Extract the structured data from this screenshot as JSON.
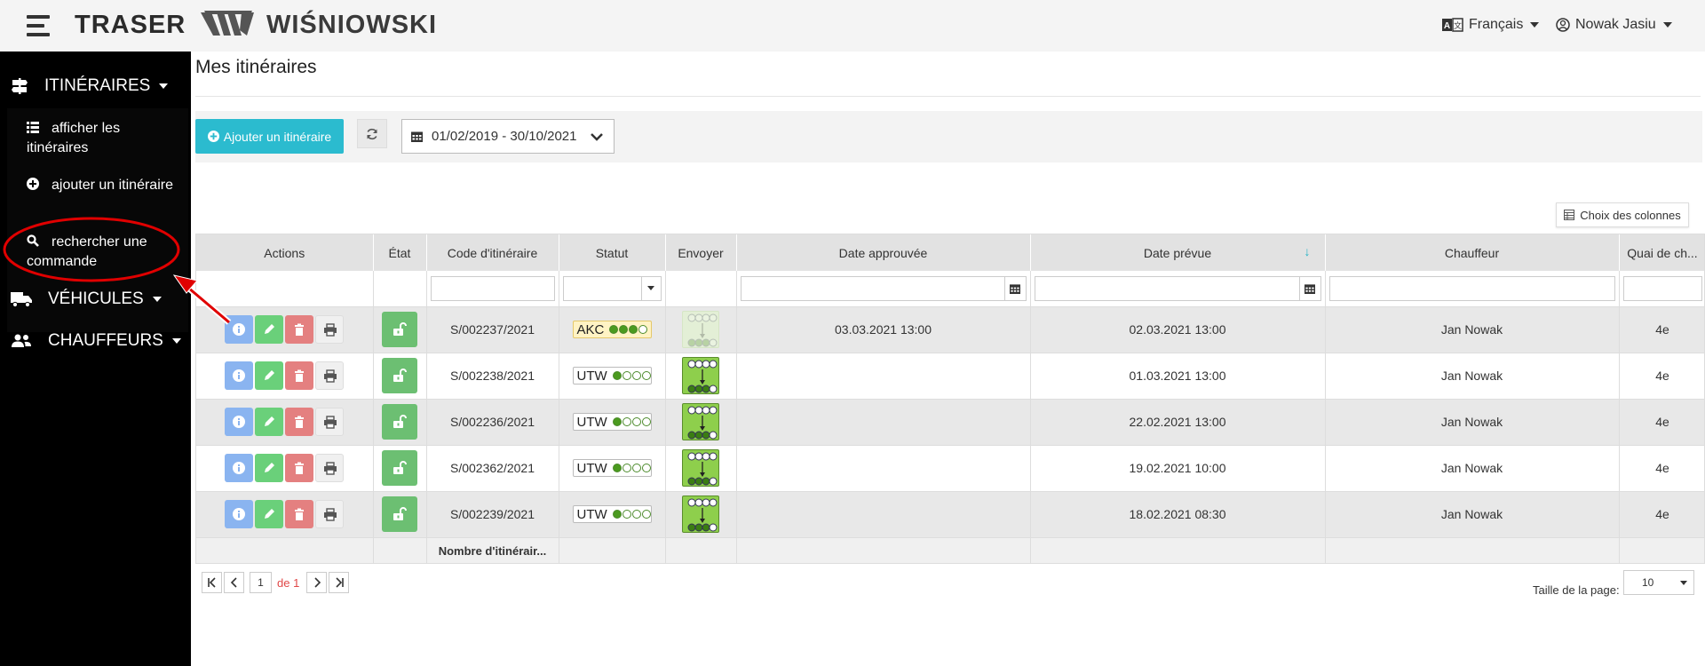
{
  "header": {
    "brand": "TRASER",
    "company": "WIŚNIOWSKI",
    "language": "Français",
    "user": "Nowak Jasiu"
  },
  "sidebar": {
    "sections": [
      {
        "label": "ITINÉRAIRES",
        "icon": "signpost-icon"
      },
      {
        "label": "VÉHICULES",
        "icon": "truck-icon"
      },
      {
        "label": "CHAUFFEURS",
        "icon": "users-icon"
      }
    ],
    "submenu": [
      {
        "label": "afficher les itinéraires",
        "icon": "list-icon"
      },
      {
        "label": "ajouter un itinéraire",
        "icon": "plus-circle-icon"
      },
      {
        "label": "rechercher une commande",
        "icon": "search-icon"
      }
    ]
  },
  "main": {
    "title": "Mes itinéraires",
    "add_button": "Ajouter un itinéraire",
    "date_range": "01/02/2019 - 30/10/2021",
    "columns_button": "Choix des colonnes"
  },
  "grid": {
    "headers": [
      "Actions",
      "État",
      "Code d'itinéraire",
      "Statut",
      "Envoyer",
      "Date approuvée",
      "Date prévue",
      "Chauffeur",
      "Quai de ch..."
    ],
    "sorted_column": "Date prévue",
    "rows": [
      {
        "code": "S/002237/2021",
        "status": "AKC",
        "status_filled": 3,
        "approved": "03.03.2021 13:00",
        "planned": "02.03.2021 13:00",
        "driver": "Jan Nowak",
        "dock": "4e"
      },
      {
        "code": "S/002238/2021",
        "status": "UTW",
        "status_filled": 1,
        "approved": "",
        "planned": "01.03.2021 13:00",
        "driver": "Jan Nowak",
        "dock": "4e"
      },
      {
        "code": "S/002236/2021",
        "status": "UTW",
        "status_filled": 1,
        "approved": "",
        "planned": "22.02.2021 13:00",
        "driver": "Jan Nowak",
        "dock": "4e"
      },
      {
        "code": "S/002362/2021",
        "status": "UTW",
        "status_filled": 1,
        "approved": "",
        "planned": "19.02.2021 10:00",
        "driver": "Jan Nowak",
        "dock": "4e"
      },
      {
        "code": "S/002239/2021",
        "status": "UTW",
        "status_filled": 1,
        "approved": "",
        "planned": "18.02.2021 08:30",
        "driver": "Jan Nowak",
        "dock": "4e"
      }
    ],
    "footer_label": "Nombre d'itinérair..."
  },
  "pagination": {
    "current_page": "1",
    "of_label": "de 1",
    "page_size_label": "Taille de la page:",
    "page_size": "10"
  },
  "colors": {
    "accent": "#2bbbcf",
    "sidebar_bg": "#000000",
    "annotation_red": "#e00000",
    "info": "#8ab4f0",
    "edit": "#6ad07a",
    "delete": "#e48080",
    "state": "#6cbf72"
  }
}
